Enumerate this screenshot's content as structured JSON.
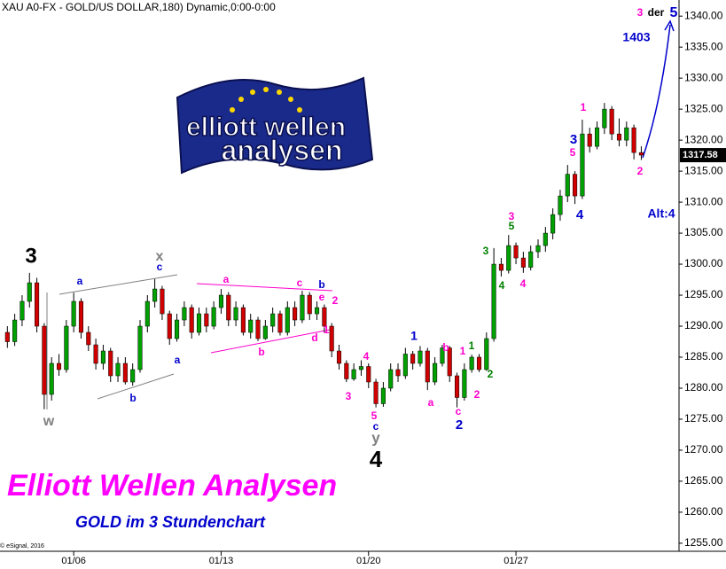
{
  "chart_data": {
    "type": "candlestick",
    "title": "XAU A0-FX - GOLD/US DOLLAR,180) Dynamic,0:00-0:00",
    "subtitle": "GOLD im 3 Stundenchart",
    "brand": "Elliott Wellen Analysen",
    "copyright": "© eSignal, 2016",
    "logo": {
      "line1": "elliott wellen",
      "line2": "analysen"
    },
    "up_color": "#00a000",
    "down_color": "#d00000",
    "open": [
      1289,
      1287.5,
      1291,
      1294,
      1297,
      1290,
      1279,
      1284,
      1283,
      1290,
      1294,
      1289,
      1287,
      1284,
      1286,
      1282,
      1284,
      1281,
      1283,
      1290,
      1294,
      1296,
      1292,
      1288,
      1291,
      1293,
      1289,
      1292,
      1290,
      1293,
      1295,
      1291,
      1293,
      1289,
      1291,
      1288,
      1290,
      1292,
      1289,
      1293,
      1291,
      1295,
      1292,
      1293,
      1290,
      1286,
      1284,
      1281.5,
      1283,
      1283.5,
      1281,
      1277.5,
      1280,
      1283,
      1282,
      1285.5,
      1284,
      1286,
      1281,
      1284,
      1286.5,
      1282,
      1278.5,
      1283,
      1285,
      1283,
      1288,
      1300,
      1299,
      1303,
      1301,
      1299.5,
      1302,
      1303,
      1305,
      1308,
      1311,
      1314.5,
      1311,
      1321,
      1319,
      1322,
      1325,
      1321,
      1320,
      1322,
      1318
    ],
    "high": [
      1290,
      1292,
      1295,
      1298.6,
      1297.8,
      1290.5,
      1285,
      1285.5,
      1291,
      1295.4,
      1294.5,
      1290,
      1288,
      1287,
      1286.5,
      1285,
      1285,
      1284,
      1291,
      1295,
      1297.6,
      1296.5,
      1292.5,
      1292,
      1294,
      1293.5,
      1293,
      1293,
      1294,
      1296,
      1295.5,
      1294,
      1293.5,
      1292,
      1291.5,
      1291,
      1293,
      1292.5,
      1294,
      1294,
      1295.7,
      1295.5,
      1294,
      1293.5,
      1290.5,
      1287,
      1284.5,
      1284,
      1284.5,
      1284,
      1281.5,
      1281,
      1284,
      1284,
      1286.5,
      1286,
      1286.8,
      1286.5,
      1285,
      1287,
      1286.8,
      1282.5,
      1284,
      1285.4,
      1285.5,
      1289,
      1302.6,
      1301,
      1304.7,
      1303.5,
      1302,
      1303,
      1304,
      1306,
      1309,
      1312,
      1316,
      1315,
      1323.3,
      1322,
      1323,
      1326,
      1325.5,
      1323.5,
      1323,
      1322.5,
      1319
    ],
    "low": [
      1286.5,
      1286.8,
      1290,
      1293,
      1289,
      1276.6,
      1278,
      1282,
      1282.5,
      1289,
      1288,
      1286,
      1283,
      1283,
      1281,
      1281,
      1280.6,
      1280.4,
      1282.5,
      1289,
      1293,
      1291,
      1287,
      1287.5,
      1290,
      1288,
      1288.5,
      1289,
      1289.5,
      1292,
      1290,
      1290,
      1288.5,
      1288,
      1287.6,
      1287.8,
      1289,
      1288.5,
      1288.5,
      1290,
      1290.5,
      1291,
      1291,
      1289,
      1285,
      1283,
      1281,
      1281.2,
      1282,
      1280,
      1276.9,
      1277,
      1279.5,
      1281,
      1281.5,
      1283,
      1283.5,
      1279.7,
      1280.5,
      1283.5,
      1281,
      1276.9,
      1278,
      1282.5,
      1282.6,
      1282.8,
      1287.5,
      1298,
      1298.5,
      1300,
      1298.6,
      1299,
      1301,
      1302,
      1304,
      1307,
      1310,
      1309.7,
      1310.5,
      1318,
      1318.5,
      1321,
      1320,
      1319,
      1319,
      1316.9,
      1316.8
    ],
    "close": [
      1287.5,
      1291,
      1294,
      1297,
      1290,
      1279,
      1284,
      1283,
      1290,
      1294,
      1289,
      1287,
      1284,
      1286,
      1282,
      1284,
      1281,
      1283,
      1290,
      1294,
      1296,
      1292,
      1288,
      1291,
      1293,
      1289,
      1292,
      1290,
      1293,
      1295,
      1291,
      1293,
      1289,
      1291,
      1288,
      1290,
      1292,
      1289,
      1293,
      1291,
      1295,
      1292,
      1293,
      1290,
      1286,
      1284,
      1281.5,
      1283,
      1283.5,
      1281,
      1277.5,
      1280,
      1283,
      1282,
      1285.5,
      1284,
      1286,
      1281,
      1284,
      1286.5,
      1282,
      1278.5,
      1283,
      1285,
      1283,
      1288,
      1300,
      1299,
      1303,
      1301,
      1299.5,
      1302,
      1303,
      1305,
      1308,
      1311,
      1314.5,
      1311,
      1321,
      1319,
      1322,
      1325,
      1321,
      1320,
      1322,
      1318,
      1317.58
    ],
    "xlim": [
      -1,
      91
    ],
    "xticks": [
      {
        "value": 9,
        "label": "01/06"
      },
      {
        "value": 29,
        "label": "01/13"
      },
      {
        "value": 49,
        "label": "01/20"
      },
      {
        "value": 69,
        "label": "01/27"
      }
    ],
    "ylim": [
      1253.7,
      1342.6
    ],
    "yticks": [
      {
        "value": 1255,
        "label": "1255.00"
      },
      {
        "value": 1260,
        "label": "1260.00"
      },
      {
        "value": 1265,
        "label": "1265.00"
      },
      {
        "value": 1270,
        "label": "1270.00"
      },
      {
        "value": 1275,
        "label": "1275.00"
      },
      {
        "value": 1280,
        "label": "1280.00"
      },
      {
        "value": 1285,
        "label": "1285.00"
      },
      {
        "value": 1290,
        "label": "1290.00"
      },
      {
        "value": 1295,
        "label": "1295.00"
      },
      {
        "value": 1300,
        "label": "1300.00"
      },
      {
        "value": 1305,
        "label": "1305.00"
      },
      {
        "value": 1310,
        "label": "1310.00"
      },
      {
        "value": 1315,
        "label": "1315.00"
      },
      {
        "value": 1320,
        "label": "1320.00"
      },
      {
        "value": 1325,
        "label": "1325.00"
      },
      {
        "value": 1330,
        "label": "1330.00"
      },
      {
        "value": 1335,
        "label": "1335.00"
      },
      {
        "value": 1340,
        "label": "1340.00"
      }
    ],
    "annotations": [
      {
        "text": "3",
        "color": "#000000"
      },
      {
        "text": "w",
        "color": "#808080"
      },
      {
        "text": "a",
        "color": "#0000cc"
      },
      {
        "text": "b",
        "color": "#0000cc"
      },
      {
        "text": "x",
        "color": "#808080"
      },
      {
        "text": "c",
        "color": "#0000cc"
      },
      {
        "text": "a",
        "color": "#0000cc"
      },
      {
        "text": "a",
        "color": "#ff00cc"
      },
      {
        "text": "b",
        "color": "#ff00cc"
      },
      {
        "text": "c",
        "color": "#ff00cc"
      },
      {
        "text": "b",
        "color": "#0000cc"
      },
      {
        "text": "e",
        "color": "#ff00cc"
      },
      {
        "text": "2",
        "color": "#ff00cc"
      },
      {
        "text": "d",
        "color": "#ff00cc"
      },
      {
        "text": "1",
        "color": "#ff00cc"
      },
      {
        "text": "4",
        "color": "#ff00cc"
      },
      {
        "text": "3",
        "color": "#ff00cc"
      },
      {
        "text": "5",
        "color": "#ff00cc"
      },
      {
        "text": "c",
        "color": "#0000cc"
      },
      {
        "text": "y",
        "color": "#808080"
      },
      {
        "text": "4",
        "color": "#000000"
      },
      {
        "text": "1",
        "color": "#0000cc"
      },
      {
        "text": "a",
        "color": "#ff00cc"
      },
      {
        "text": "b",
        "color": "#ff00cc"
      },
      {
        "text": "1",
        "color": "#ff00cc"
      },
      {
        "text": "2",
        "color": "#0000cc"
      },
      {
        "text": "c",
        "color": "#ff00cc"
      },
      {
        "text": "1",
        "color": "#008000"
      },
      {
        "text": "2",
        "color": "#ff00cc"
      },
      {
        "text": "2",
        "color": "#008000"
      },
      {
        "text": "3",
        "color": "#008000"
      },
      {
        "text": "4",
        "color": "#008000"
      },
      {
        "text": "5",
        "color": "#008000"
      },
      {
        "text": "3",
        "color": "#ff00cc"
      },
      {
        "text": "4",
        "color": "#ff00cc"
      },
      {
        "text": "5",
        "color": "#ff00cc"
      },
      {
        "text": "3",
        "color": "#0000cc"
      },
      {
        "text": "4",
        "color": "#0000cc"
      },
      {
        "text": "1",
        "color": "#ff00cc"
      },
      {
        "text": "2",
        "color": "#ff00cc"
      },
      {
        "text": "Alt:4",
        "color": "#0000cc"
      },
      {
        "text": "1403",
        "color": "#0000cc"
      },
      {
        "text": "3",
        "color": "#ff00cc"
      },
      {
        "text": "der",
        "color": "#000000"
      },
      {
        "text": "5",
        "color": "#0000cc"
      }
    ]
  }
}
